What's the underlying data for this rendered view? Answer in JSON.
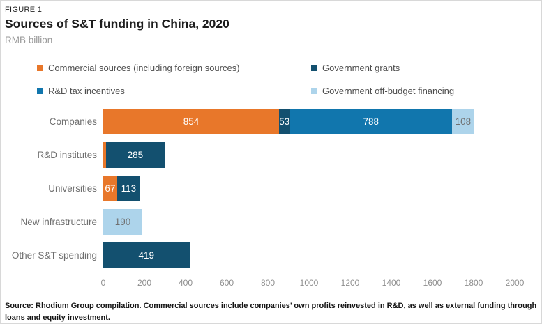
{
  "figure": {
    "label": "FIGURE 1",
    "title": "Sources of S&T funding in China, 2020",
    "subtitle": "RMB billion"
  },
  "colors": {
    "commercial": "#E8772A",
    "government_grants": "#13506F",
    "rd_tax_incentives": "#1176AD",
    "off_budget": "#ADD4EB",
    "light_segment_label": "#6f6f6f",
    "dark_segment_label": "#ffffff"
  },
  "chart_data": {
    "type": "bar",
    "orientation": "horizontal-stacked",
    "title": "Sources of S&T funding in China, 2020",
    "units": "RMB billion",
    "categories": [
      "Companies",
      "R&D institutes",
      "Universities",
      "New infrastructure",
      "Other S&T spending"
    ],
    "series": [
      {
        "name": "Commercial sources (including foreign sources)",
        "color": "#E8772A",
        "label_color": "#ffffff",
        "values": [
          854,
          13,
          67,
          0,
          0
        ],
        "labels": [
          "854",
          "",
          "67",
          "",
          ""
        ]
      },
      {
        "name": "Government grants",
        "color": "#13506F",
        "label_color": "#ffffff",
        "values": [
          53,
          285,
          113,
          0,
          419
        ],
        "labels": [
          "53",
          "285",
          "113",
          "",
          "419"
        ]
      },
      {
        "name": "R&D tax incentives",
        "color": "#1176AD",
        "label_color": "#ffffff",
        "values": [
          788,
          0,
          0,
          0,
          0
        ],
        "labels": [
          "788",
          "",
          "",
          "",
          ""
        ]
      },
      {
        "name": "Government off-budget financing",
        "color": "#ADD4EB",
        "label_color": "#6f6f6f",
        "values": [
          108,
          0,
          0,
          190,
          0
        ],
        "labels": [
          "108",
          "",
          "",
          "190",
          ""
        ]
      }
    ],
    "xlim": [
      0,
      2000
    ],
    "ticks": [
      0,
      200,
      400,
      600,
      800,
      1000,
      1200,
      1400,
      1600,
      1800,
      2000
    ],
    "grid": false,
    "legend_position": "top"
  },
  "source": {
    "line1": "Source: Rhodium Group compilation. Commercial sources include companies’ own profits reinvested in R&D, as well as external funding through",
    "line2": "loans and equity investment."
  }
}
